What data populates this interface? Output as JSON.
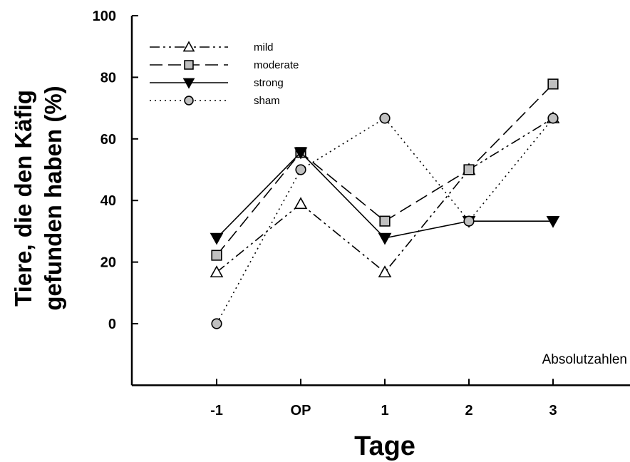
{
  "chart_data": {
    "type": "line",
    "xlabel": "Tage",
    "ylabel": "Tiere, die den Käfig gefunden haben (%)",
    "ylabel_lines": [
      "Tiere, die den Käfig",
      "gefunden haben (%)"
    ],
    "categories": [
      "-1",
      "OP",
      "1",
      "2",
      "3"
    ],
    "ylim": [
      -20,
      100
    ],
    "yticks": [
      0,
      20,
      40,
      60,
      80,
      100
    ],
    "annotation": "Absolutzahlen",
    "legend_position": "top-left",
    "grid": false,
    "series": [
      {
        "name": "mild",
        "values": [
          16.7,
          38.9,
          16.7,
          50.0,
          66.7
        ],
        "marker": "triangle-up",
        "fill": "#ffffff",
        "dash": "14,5,3,5,3,5"
      },
      {
        "name": "moderate",
        "values": [
          22.2,
          55.6,
          33.3,
          50.0,
          77.8
        ],
        "marker": "square",
        "fill": "#c0c0c0",
        "dash": "18,8"
      },
      {
        "name": "strong",
        "values": [
          27.8,
          55.6,
          27.8,
          33.3,
          33.3
        ],
        "marker": "triangle-down",
        "fill": "#000000",
        "dash": ""
      },
      {
        "name": "sham",
        "values": [
          0.0,
          50.0,
          66.7,
          33.3,
          66.7
        ],
        "marker": "circle",
        "fill": "#c0c0c0",
        "dash": "2,5"
      }
    ]
  }
}
